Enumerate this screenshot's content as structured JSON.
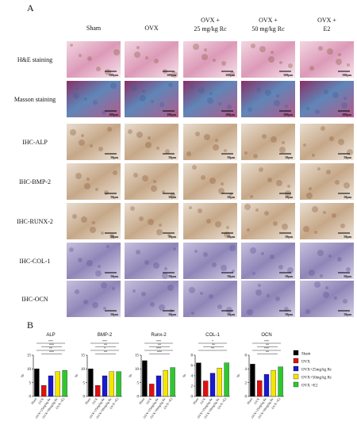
{
  "panel_a": {
    "label": "A",
    "columns": [
      [
        "Sham"
      ],
      [
        "OVX"
      ],
      [
        "OVX +",
        "25 mg/kg Rc"
      ],
      [
        "OVX +",
        "50 mg/kg Rc"
      ],
      [
        "OVX +",
        "E2"
      ]
    ],
    "rows": [
      {
        "label": "H&E staining",
        "scale_bar": "500μm"
      },
      {
        "label": "Masson staining",
        "scale_bar": "200μm"
      },
      {
        "label": "IHC-ALP",
        "scale_bar": "50μm"
      },
      {
        "label": "IHC-BMP-2",
        "scale_bar": "50μm"
      },
      {
        "label": "IHC-RUNX-2",
        "scale_bar": "50μm"
      },
      {
        "label": "IHC-COL-1",
        "scale_bar": "50μm"
      },
      {
        "label": "IHC-OCN",
        "scale_bar": "50μm"
      }
    ]
  },
  "panel_b": {
    "label": "B",
    "legend": [
      {
        "name": "Sham",
        "color": "#000000"
      },
      {
        "name": "OVX",
        "color": "#e01010"
      },
      {
        "name": "OVX+25mg/kg Rc",
        "color": "#1a1ad0"
      },
      {
        "name": "OVX+50mg/kg Rc",
        "color": "#f2e600"
      },
      {
        "name": "OVX +E2",
        "color": "#2ec82e"
      }
    ]
  },
  "chart_data": [
    {
      "type": "bar",
      "title": "ALP",
      "ylabel": "%",
      "categories": [
        "Sham",
        "OVX",
        "OVX+25mg/kg Rc",
        "OVX+50mg/kg Rc",
        "OVX +E2"
      ],
      "values": [
        10,
        4,
        7.5,
        9,
        9.5
      ],
      "colors": [
        "#000000",
        "#e01010",
        "#1a1ad0",
        "#f2e600",
        "#2ec82e"
      ],
      "ylim": [
        0,
        15
      ],
      "yticks": [
        0,
        5,
        10,
        15
      ],
      "significance": [
        "***",
        "***",
        "**",
        "***"
      ]
    },
    {
      "type": "bar",
      "title": "BMP-2",
      "ylabel": "%",
      "categories": [
        "Sham",
        "OVX",
        "OVX+25mg/kg Rc",
        "OVX+50mg/kg Rc",
        "OVX +E2"
      ],
      "values": [
        10,
        4,
        7.5,
        9,
        9
      ],
      "colors": [
        "#000000",
        "#e01010",
        "#1a1ad0",
        "#f2e600",
        "#2ec82e"
      ],
      "ylim": [
        0,
        15
      ],
      "yticks": [
        0,
        5,
        10,
        15
      ],
      "significance": [
        "***",
        "**",
        "*",
        "**"
      ]
    },
    {
      "type": "bar",
      "title": "Runx-2",
      "ylabel": "%",
      "categories": [
        "Sham",
        "OVX",
        "OVX+25mg/kg Rc",
        "OVX+50mg/kg Rc",
        "OVX +E2"
      ],
      "values": [
        13,
        4.5,
        7.5,
        9.5,
        10.5
      ],
      "colors": [
        "#000000",
        "#e01010",
        "#1a1ad0",
        "#f2e600",
        "#2ec82e"
      ],
      "ylim": [
        0,
        15
      ],
      "yticks": [
        0,
        5,
        10,
        15
      ],
      "significance": [
        "***",
        "**",
        "***",
        "***"
      ]
    },
    {
      "type": "bar",
      "title": "COL-1",
      "ylabel": "%",
      "categories": [
        "Sham",
        "OVX",
        "OVX+25mg/kg Rc",
        "OVX+50mg/kg Rc",
        "OVX +E2"
      ],
      "values": [
        6.5,
        3,
        4.5,
        5.5,
        6.5
      ],
      "colors": [
        "#000000",
        "#e01010",
        "#1a1ad0",
        "#f2e600",
        "#2ec82e"
      ],
      "ylim": [
        0,
        8
      ],
      "yticks": [
        0,
        2,
        4,
        6,
        8
      ],
      "significance": [
        "*",
        "**",
        "**"
      ]
    },
    {
      "type": "bar",
      "title": "OCN",
      "ylabel": "%",
      "categories": [
        "Sham",
        "OVX",
        "OVX+25mg/kg Rc",
        "OVX+50mg/kg Rc",
        "OVX +E2"
      ],
      "values": [
        4.7,
        2.3,
        3.2,
        3.8,
        4.3
      ],
      "colors": [
        "#000000",
        "#e01010",
        "#1a1ad0",
        "#f2e600",
        "#2ec82e"
      ],
      "ylim": [
        0,
        6
      ],
      "yticks": [
        0,
        2,
        4,
        6
      ],
      "significance": [
        "***",
        "**",
        "***",
        "**"
      ]
    }
  ]
}
